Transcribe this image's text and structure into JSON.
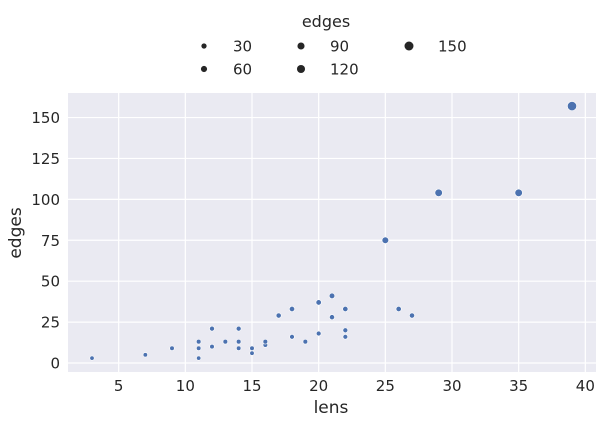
{
  "chart_data": {
    "type": "scatter",
    "xlabel": "lens",
    "ylabel": "edges",
    "xlim": [
      1.2,
      40.8
    ],
    "ylim": [
      -5.5,
      165
    ],
    "x_ticks": [
      5,
      10,
      15,
      20,
      25,
      30,
      35,
      40
    ],
    "y_ticks": [
      0,
      25,
      50,
      75,
      100,
      125,
      150
    ],
    "grid": true,
    "legend": {
      "title": "edges",
      "placement": "top-center",
      "entries": [
        {
          "label": "30",
          "size_value": 30
        },
        {
          "label": "90",
          "size_value": 90
        },
        {
          "label": "150",
          "size_value": 150
        },
        {
          "label": "60",
          "size_value": 60
        },
        {
          "label": "120",
          "size_value": 120
        }
      ]
    },
    "point_color": "#4c72b0",
    "points": [
      {
        "x": 3,
        "y": 3
      },
      {
        "x": 7,
        "y": 5
      },
      {
        "x": 9,
        "y": 9
      },
      {
        "x": 11,
        "y": 3
      },
      {
        "x": 11,
        "y": 9
      },
      {
        "x": 11,
        "y": 13
      },
      {
        "x": 12,
        "y": 10
      },
      {
        "x": 12,
        "y": 21
      },
      {
        "x": 13,
        "y": 13
      },
      {
        "x": 14,
        "y": 9
      },
      {
        "x": 14,
        "y": 13
      },
      {
        "x": 14,
        "y": 21
      },
      {
        "x": 15,
        "y": 6
      },
      {
        "x": 15,
        "y": 9
      },
      {
        "x": 16,
        "y": 11
      },
      {
        "x": 16,
        "y": 13
      },
      {
        "x": 17,
        "y": 29
      },
      {
        "x": 18,
        "y": 16
      },
      {
        "x": 18,
        "y": 33
      },
      {
        "x": 19,
        "y": 13
      },
      {
        "x": 20,
        "y": 18
      },
      {
        "x": 20,
        "y": 37
      },
      {
        "x": 21,
        "y": 28
      },
      {
        "x": 21,
        "y": 41
      },
      {
        "x": 22,
        "y": 16
      },
      {
        "x": 22,
        "y": 20
      },
      {
        "x": 22,
        "y": 33
      },
      {
        "x": 25,
        "y": 75
      },
      {
        "x": 26,
        "y": 33
      },
      {
        "x": 27,
        "y": 29
      },
      {
        "x": 29,
        "y": 104
      },
      {
        "x": 35,
        "y": 104
      },
      {
        "x": 39,
        "y": 157
      }
    ]
  }
}
